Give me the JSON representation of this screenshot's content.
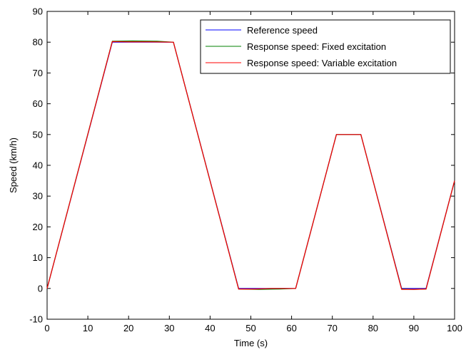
{
  "chart_data": {
    "type": "line",
    "xlabel": "Time (s)",
    "ylabel": "Speed (km/h)",
    "xlim": [
      0,
      100
    ],
    "ylim": [
      -10,
      90
    ],
    "xticks": [
      0,
      10,
      20,
      30,
      40,
      50,
      60,
      70,
      80,
      90,
      100
    ],
    "yticks": [
      -10,
      0,
      10,
      20,
      30,
      40,
      50,
      60,
      70,
      80,
      90
    ],
    "grid": false,
    "legend_position": "top-right",
    "series": [
      {
        "name": "Reference speed",
        "color": "#0000ff",
        "x": [
          0,
          16,
          31,
          47,
          61,
          71,
          77,
          87,
          93,
          100
        ],
        "y": [
          0,
          80,
          80,
          0,
          0,
          50,
          50,
          0,
          0,
          35
        ]
      },
      {
        "name": "Response speed: Fixed excitation",
        "color": "#008000",
        "x": [
          0,
          16,
          21,
          27,
          31,
          47,
          52,
          57,
          61,
          71,
          77,
          87,
          90,
          93,
          100
        ],
        "y": [
          0,
          80.3,
          80.4,
          80.3,
          80,
          -0.2,
          -0.3,
          -0.2,
          0,
          50,
          50,
          -0.2,
          -0.3,
          -0.2,
          35
        ]
      },
      {
        "name": "Response speed: Variable excitation",
        "color": "#ff0000",
        "x": [
          0,
          16,
          20,
          25,
          31,
          47,
          51,
          55,
          61,
          71,
          77,
          87,
          90,
          93,
          100
        ],
        "y": [
          0,
          80.2,
          80.1,
          80.1,
          80,
          -0.2,
          -0.2,
          0,
          0,
          50,
          50,
          -0.3,
          -0.3,
          -0.2,
          35
        ]
      }
    ]
  }
}
